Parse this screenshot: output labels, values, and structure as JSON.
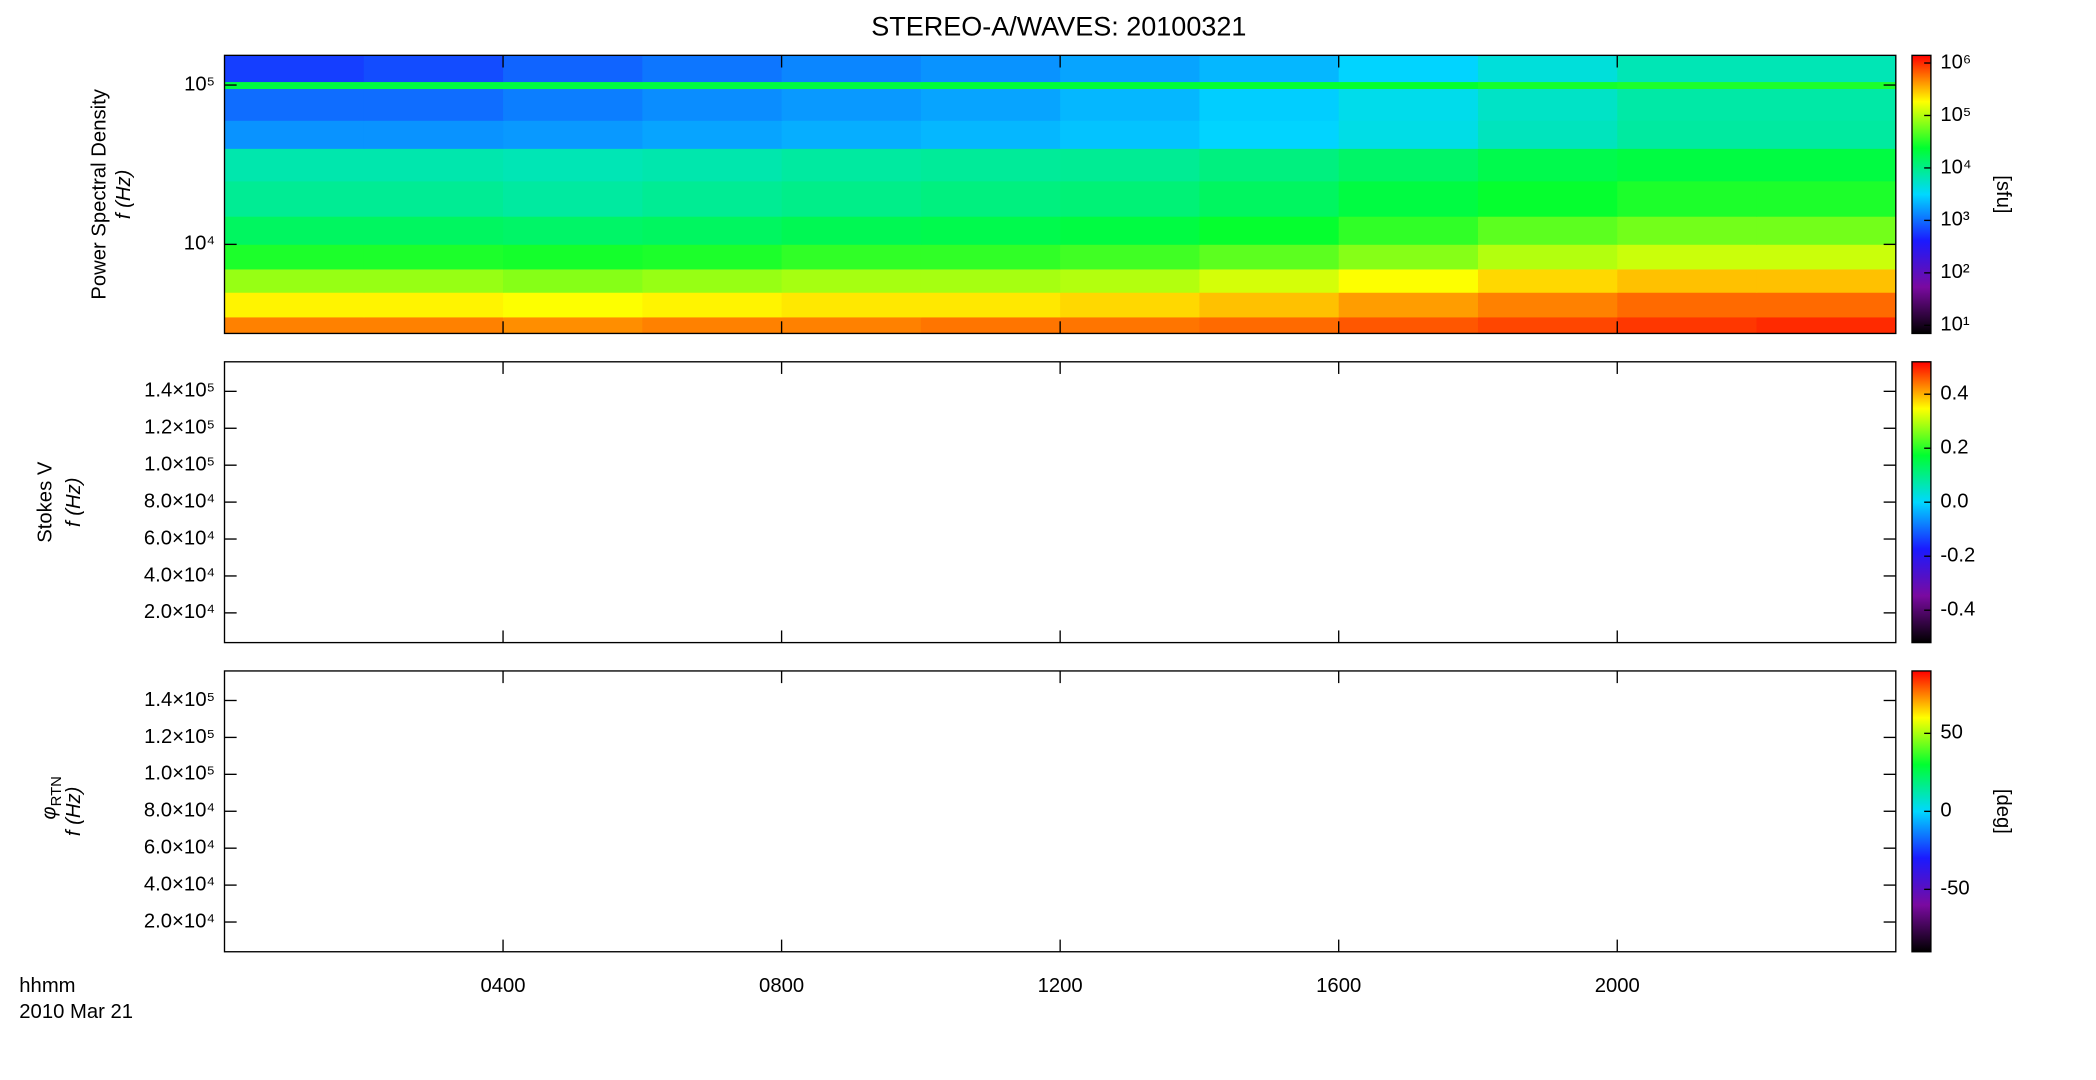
{
  "title": "STEREO-A/WAVES: 20100321",
  "time_unit_label": "hhmm",
  "date_label": "2010 Mar 21",
  "chart_data": [
    {
      "type": "heatmap",
      "ylabel": "Power Spectral Density",
      "ylabel2": "f (Hz)",
      "colorbar_label": "[sfu]",
      "ylog": true,
      "clog": true,
      "xlim": [
        0,
        24
      ],
      "ylim": [
        2760,
        153600
      ],
      "yticks": [
        {
          "value": 10000,
          "label": "10⁴"
        },
        {
          "value": 100000,
          "label": "10⁵"
        }
      ],
      "clim": [
        7,
        1400000
      ],
      "cticks": [
        {
          "value": 10,
          "label": "10¹"
        },
        {
          "value": 100,
          "label": "10²"
        },
        {
          "value": 1000,
          "label": "10³"
        },
        {
          "value": 10000,
          "label": "10⁴"
        },
        {
          "value": 100000,
          "label": "10⁵"
        },
        {
          "value": 1000000,
          "label": "10⁶"
        }
      ],
      "colormap": [
        "#000000",
        "#7a0aa0",
        "#1a1aff",
        "#00d8ff",
        "#00ff30",
        "#ffff00",
        "#ff0000"
      ],
      "x_bins": [
        0,
        2,
        4,
        6,
        8,
        10,
        12,
        14,
        16,
        18,
        20,
        22,
        24
      ],
      "y_bins": [
        2760,
        3500,
        5000,
        7000,
        10000,
        15000,
        25000,
        40000,
        60000,
        95000,
        105000,
        153600
      ],
      "z": [
        [
          500000,
          500000,
          450000,
          500000,
          500000,
          550000,
          550000,
          600000,
          700000,
          800000,
          900000,
          1000000
        ],
        [
          200000,
          200000,
          180000,
          200000,
          220000,
          220000,
          250000,
          300000,
          400000,
          500000,
          600000,
          600000
        ],
        [
          80000,
          80000,
          70000,
          80000,
          90000,
          90000,
          100000,
          130000,
          180000,
          250000,
          300000,
          300000
        ],
        [
          30000,
          30000,
          28000,
          30000,
          35000,
          35000,
          40000,
          50000,
          70000,
          100000,
          120000,
          120000
        ],
        [
          15000,
          15000,
          14000,
          15000,
          17000,
          18000,
          20000,
          25000,
          35000,
          50000,
          60000,
          60000
        ],
        [
          9000,
          9000,
          8000,
          9000,
          10000,
          11000,
          12000,
          15000,
          20000,
          25000,
          30000,
          30000
        ],
        [
          7000,
          7000,
          6500,
          7000,
          8000,
          8500,
          9000,
          11000,
          14000,
          18000,
          20000,
          20000
        ],
        [
          1500,
          1500,
          1600,
          1800,
          2000,
          2200,
          2500,
          3000,
          4000,
          6000,
          8000,
          8000
        ],
        [
          1000,
          1000,
          1200,
          1400,
          1600,
          1800,
          2200,
          2800,
          3800,
          5500,
          7500,
          7500
        ],
        [
          20000,
          20000,
          20000,
          20000,
          20000,
          22000,
          22000,
          25000,
          25000,
          28000,
          30000,
          30000
        ],
        [
          600,
          700,
          900,
          1100,
          1300,
          1500,
          1800,
          2200,
          3000,
          4500,
          6500,
          6500
        ]
      ]
    },
    {
      "type": "heatmap",
      "ylabel": "Stokes V",
      "ylabel2": "f (Hz)",
      "xlim": [
        0,
        24
      ],
      "ylim": [
        3900,
        156000
      ],
      "yticks": [
        {
          "value": 20000,
          "label": "2.0×10⁴"
        },
        {
          "value": 40000,
          "label": "4.0×10⁴"
        },
        {
          "value": 60000,
          "label": "6.0×10⁴"
        },
        {
          "value": 80000,
          "label": "8.0×10⁴"
        },
        {
          "value": 100000,
          "label": "1.0×10⁵"
        },
        {
          "value": 120000,
          "label": "1.2×10⁵"
        },
        {
          "value": 140000,
          "label": "1.4×10⁵"
        }
      ],
      "clim": [
        -0.52,
        0.52
      ],
      "cticks": [
        {
          "value": -0.4,
          "label": "-0.4"
        },
        {
          "value": -0.2,
          "label": "-0.2"
        },
        {
          "value": 0,
          "label": "0.0"
        },
        {
          "value": 0.2,
          "label": "0.2"
        },
        {
          "value": 0.4,
          "label": "0.4"
        }
      ],
      "colormap": [
        "#000000",
        "#7a0aa0",
        "#1a1aff",
        "#00d8ff",
        "#00ff30",
        "#ffff00",
        "#ff0000"
      ]
    },
    {
      "type": "heatmap",
      "ylabel_symbol": "φ",
      "ylabel_subscript": "RTN",
      "ylabel2": "f (Hz)",
      "colorbar_label": "[deg]",
      "xlim": [
        0,
        24
      ],
      "xticks": [
        {
          "value": 4,
          "label": "0400"
        },
        {
          "value": 8,
          "label": "0800"
        },
        {
          "value": 12,
          "label": "1200"
        },
        {
          "value": 16,
          "label": "1600"
        },
        {
          "value": 20,
          "label": "2000"
        }
      ],
      "ylim": [
        3900,
        156000
      ],
      "yticks": [
        {
          "value": 20000,
          "label": "2.0×10⁴"
        },
        {
          "value": 40000,
          "label": "4.0×10⁴"
        },
        {
          "value": 60000,
          "label": "6.0×10⁴"
        },
        {
          "value": 80000,
          "label": "8.0×10⁴"
        },
        {
          "value": 100000,
          "label": "1.0×10⁵"
        },
        {
          "value": 120000,
          "label": "1.2×10⁵"
        },
        {
          "value": 140000,
          "label": "1.4×10⁵"
        }
      ],
      "clim": [
        -90,
        90
      ],
      "cticks": [
        -50,
        0,
        50
      ],
      "colormap": [
        "#000000",
        "#7a0aa0",
        "#1a1aff",
        "#00d8ff",
        "#00ff30",
        "#ffff00",
        "#ff0000"
      ]
    }
  ]
}
